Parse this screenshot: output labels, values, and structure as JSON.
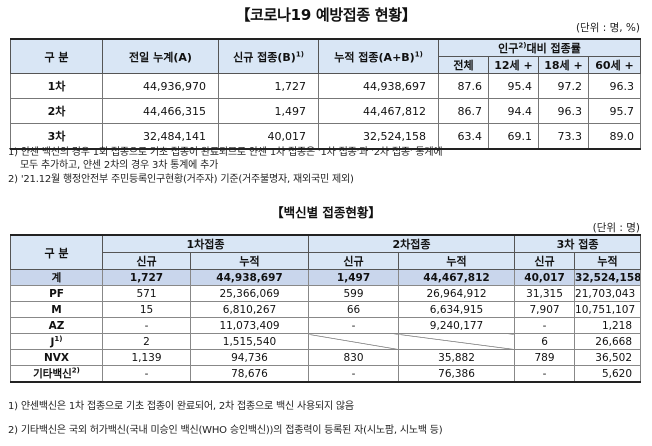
{
  "title1": "【코로나19 예방접종 현황】",
  "unit1": "(단위 : 명, %)",
  "t1": {
    "h_category": "구 분",
    "h_cum_prev": "전일 누계(A)",
    "h_new": "신규 접종(B)",
    "h_new_sup": "1)",
    "h_cum": "누적 접종(A+B)",
    "h_cum_sup": "1)",
    "h_pop": "인구",
    "h_pop_sup": "2)",
    "h_pop_rest": "대비 접종률",
    "h_all": "전체",
    "h_12": "12세 +",
    "h_18": "18세 +",
    "h_60": "60세 +",
    "rows": [
      {
        "label": "1차",
        "prev": "44,936,970",
        "new": "1,727",
        "cum": "44,938,697",
        "all": "87.6",
        "a12": "95.4",
        "a18": "97.2",
        "a60": "96.3"
      },
      {
        "label": "2차",
        "prev": "44,466,315",
        "new": "1,497",
        "cum": "44,467,812",
        "all": "86.7",
        "a12": "94.4",
        "a18": "96.3",
        "a60": "95.7"
      },
      {
        "label": "3차",
        "prev": "32,484,141",
        "new": "40,017",
        "cum": "32,524,158",
        "all": "63.4",
        "a12": "69.1",
        "a18": "73.3",
        "a60": "89.0"
      }
    ]
  },
  "fn1": "1) 얀센 백신의 경우 1회 접종으로 기초 접종이 완료되므로 얀센 1차 접종은 '1차 접종'과 '2차 접종' 통계에",
  "fn1b": "모두 추가하고, 얀센 2차의 경우 3차 통계에 추가",
  "fn2": "2) '21.12월 행정안전부 주민등록인구현황(거주자) 기준(거주불명자, 재외국민 제외)",
  "title2": "【백신별 접종현황】",
  "unit2": "(단위 : 명)",
  "t2": {
    "h_category": "구 분",
    "h_d1": "1차접종",
    "h_d2": "2차접종",
    "h_d3": "3차 접종",
    "h_new": "신규",
    "h_cum": "누적",
    "rows": [
      {
        "label": "계",
        "d1n": "1,727",
        "d1c": "44,938,697",
        "d2n": "1,497",
        "d2c": "44,467,812",
        "d3n": "40,017",
        "d3c": "32,524,158"
      },
      {
        "label": "PF",
        "d1n": "571",
        "d1c": "25,366,069",
        "d2n": "599",
        "d2c": "26,964,912",
        "d3n": "31,315",
        "d3c": "21,703,043"
      },
      {
        "label": "M",
        "d1n": "15",
        "d1c": "6,810,267",
        "d2n": "66",
        "d2c": "6,634,915",
        "d3n": "7,907",
        "d3c": "10,751,107"
      },
      {
        "label": "AZ",
        "d1n": "-",
        "d1c": "11,073,409",
        "d2n": "-",
        "d2c": "9,240,177",
        "d3n": "-",
        "d3c": "1,218"
      },
      {
        "label": "J",
        "sup": "1)",
        "d1n": "2",
        "d1c": "1,515,540",
        "d3n": "6",
        "d3c": "26,668"
      },
      {
        "label": "NVX",
        "d1n": "1,139",
        "d1c": "94,736",
        "d2n": "830",
        "d2c": "35,882",
        "d3n": "789",
        "d3c": "36,502"
      },
      {
        "label": "기타백신",
        "sup": "2)",
        "d1n": "-",
        "d1c": "78,676",
        "d2n": "-",
        "d2c": "76,386",
        "d3n": "-",
        "d3c": "5,620"
      }
    ]
  },
  "fn3": "1) 얀센백신은 1차 접종으로 기초 접종이 완료되어, 2차 접종으로 백신 사용되지 않음",
  "fn4": "2) 기타백신은 국외 허가백신(국내 미승인 백신(WHO 승인백신))의 접종력이 등록된 자(시노팜, 시노백 등)"
}
